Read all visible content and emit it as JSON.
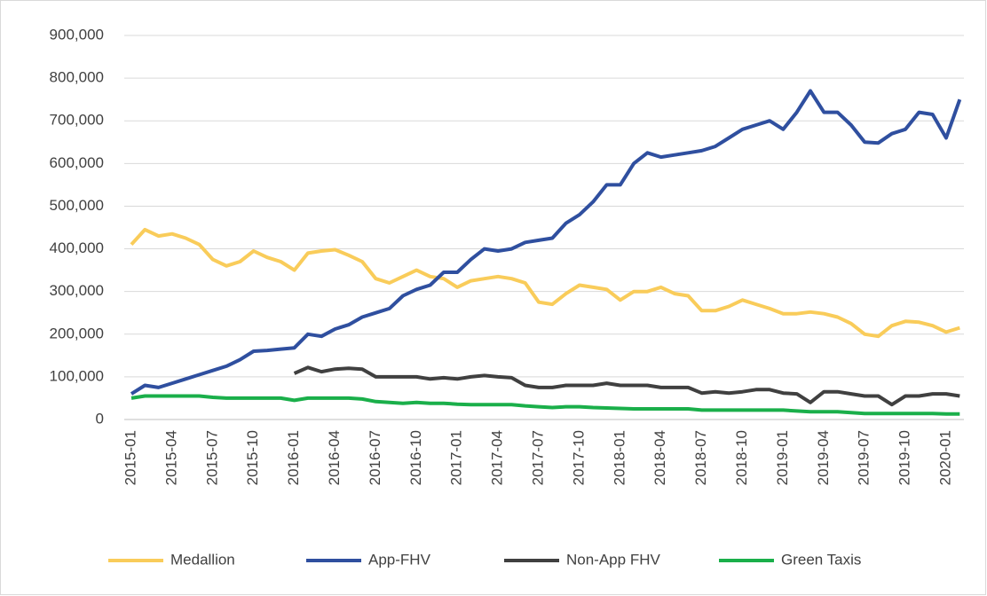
{
  "chart_data": {
    "type": "line",
    "categories": [
      "2015-01",
      null,
      null,
      "2015-04",
      null,
      null,
      "2015-07",
      null,
      null,
      "2015-10",
      null,
      null,
      "2016-01",
      null,
      null,
      "2016-04",
      null,
      null,
      "2016-07",
      null,
      null,
      "2016-10",
      null,
      null,
      "2017-01",
      null,
      null,
      "2017-04",
      null,
      null,
      "2017-07",
      null,
      null,
      "2017-10",
      null,
      null,
      "2018-01",
      null,
      null,
      "2018-04",
      null,
      null,
      "2018-07",
      null,
      null,
      "2018-10",
      null,
      null,
      "2019-01",
      null,
      null,
      "2019-04",
      null,
      null,
      "2019-07",
      null,
      null,
      "2019-10",
      null,
      null,
      "2020-01",
      null
    ],
    "series": [
      {
        "name": "Medallion",
        "color": "#f9cc5a",
        "values": [
          410000,
          445000,
          430000,
          435000,
          425000,
          410000,
          375000,
          360000,
          370000,
          395000,
          380000,
          370000,
          350000,
          390000,
          395000,
          398000,
          385000,
          370000,
          330000,
          320000,
          335000,
          350000,
          335000,
          330000,
          310000,
          325000,
          330000,
          335000,
          330000,
          320000,
          275000,
          270000,
          295000,
          315000,
          310000,
          305000,
          280000,
          300000,
          300000,
          310000,
          295000,
          290000,
          255000,
          255000,
          265000,
          280000,
          270000,
          260000,
          248000,
          248000,
          252000,
          248000,
          240000,
          225000,
          200000,
          195000,
          220000,
          230000,
          228000,
          220000,
          205000,
          215000
        ]
      },
      {
        "name": "App-FHV",
        "color": "#2f4f9f",
        "values": [
          60000,
          80000,
          75000,
          85000,
          95000,
          105000,
          115000,
          125000,
          140000,
          160000,
          162000,
          165000,
          168000,
          200000,
          195000,
          212000,
          222000,
          240000,
          250000,
          260000,
          290000,
          305000,
          315000,
          345000,
          345000,
          375000,
          400000,
          395000,
          400000,
          415000,
          420000,
          425000,
          460000,
          480000,
          510000,
          550000,
          550000,
          600000,
          625000,
          615000,
          620000,
          625000,
          630000,
          640000,
          660000,
          680000,
          690000,
          700000,
          680000,
          720000,
          770000,
          720000,
          720000,
          690000,
          650000,
          648000,
          670000,
          680000,
          720000,
          715000,
          660000,
          750000
        ]
      },
      {
        "name": "Non-App FHV",
        "color": "#404040",
        "values": [
          null,
          null,
          null,
          null,
          null,
          null,
          null,
          null,
          null,
          null,
          null,
          null,
          108000,
          122000,
          112000,
          118000,
          120000,
          118000,
          100000,
          100000,
          100000,
          100000,
          95000,
          98000,
          95000,
          100000,
          103000,
          100000,
          98000,
          80000,
          75000,
          75000,
          80000,
          80000,
          80000,
          85000,
          80000,
          80000,
          80000,
          75000,
          75000,
          75000,
          62000,
          65000,
          62000,
          65000,
          70000,
          70000,
          62000,
          60000,
          40000,
          65000,
          65000,
          60000,
          55000,
          55000,
          35000,
          55000,
          55000,
          60000,
          60000,
          55000
        ]
      },
      {
        "name": "Green Taxis",
        "color": "#1aaf4a",
        "values": [
          50000,
          55000,
          55000,
          55000,
          55000,
          55000,
          52000,
          50000,
          50000,
          50000,
          50000,
          50000,
          45000,
          50000,
          50000,
          50000,
          50000,
          48000,
          42000,
          40000,
          38000,
          40000,
          38000,
          38000,
          36000,
          35000,
          35000,
          35000,
          35000,
          32000,
          30000,
          28000,
          30000,
          30000,
          28000,
          27000,
          26000,
          25000,
          25000,
          25000,
          25000,
          25000,
          22000,
          22000,
          22000,
          22000,
          22000,
          22000,
          22000,
          20000,
          18000,
          18000,
          18000,
          16000,
          14000,
          14000,
          14000,
          14000,
          14000,
          14000,
          13000,
          13000
        ]
      }
    ],
    "ylim": [
      0,
      900000
    ],
    "yticks": [
      0,
      {
        "value": 100000,
        "label": "100,000"
      },
      {
        "value": 200000,
        "label": "200,000"
      },
      {
        "value": 300000,
        "label": "300,000"
      },
      {
        "value": 400000,
        "label": "400,000"
      },
      {
        "value": 500000,
        "label": "500,000"
      },
      {
        "value": 600000,
        "label": "600,000"
      },
      {
        "value": 700000,
        "label": "700,000"
      },
      {
        "value": 800000,
        "label": "800,000"
      },
      {
        "value": 900000,
        "label": "900,000"
      }
    ],
    "grid": true,
    "legend": "bottom"
  }
}
